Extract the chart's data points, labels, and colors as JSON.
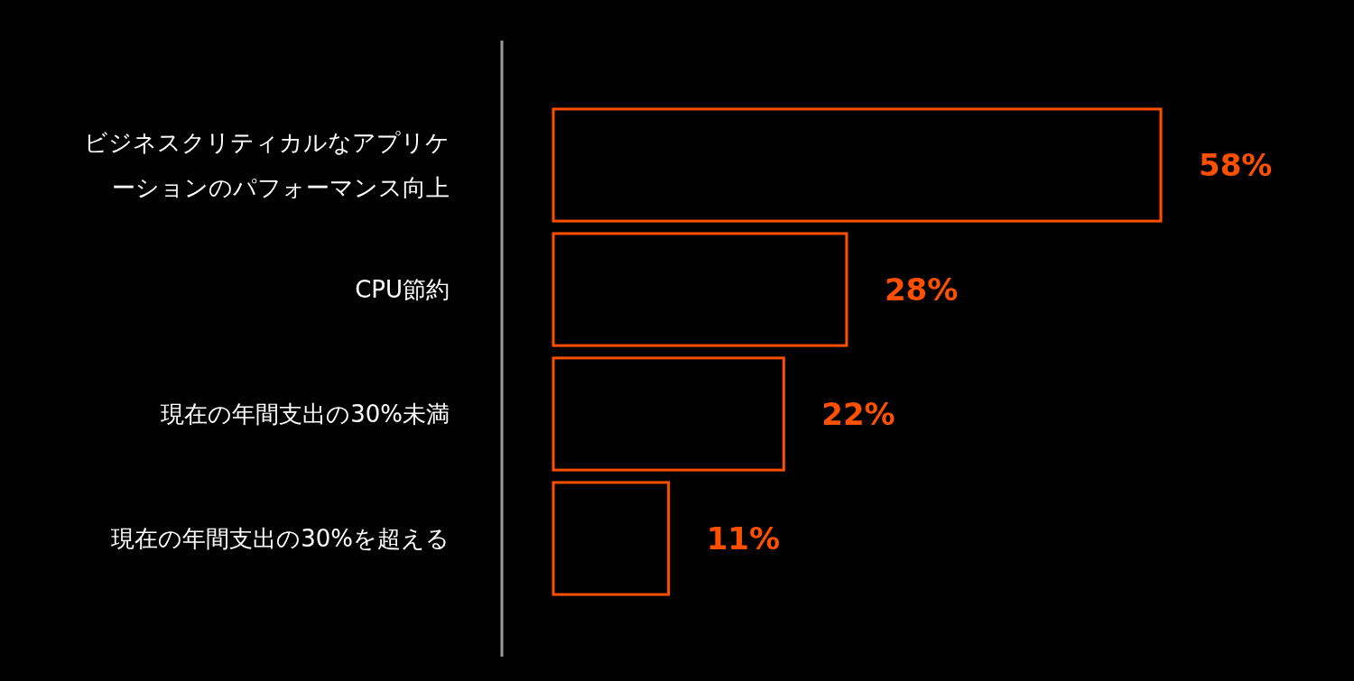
{
  "chart_data": {
    "type": "bar",
    "orientation": "horizontal",
    "categories": [
      "ビジネスクリティカルなアプリケーションのパフォーマンス向上",
      "CPU節約",
      "現在の年間支出の30%未満",
      "現在の年間支出の30%を超える"
    ],
    "series": [
      {
        "color": "#ff5000",
        "values": [
          58,
          28,
          22,
          11
        ],
        "value_labels": [
          "58%",
          "28%",
          "22%",
          "11%"
        ]
      }
    ]
  }
}
